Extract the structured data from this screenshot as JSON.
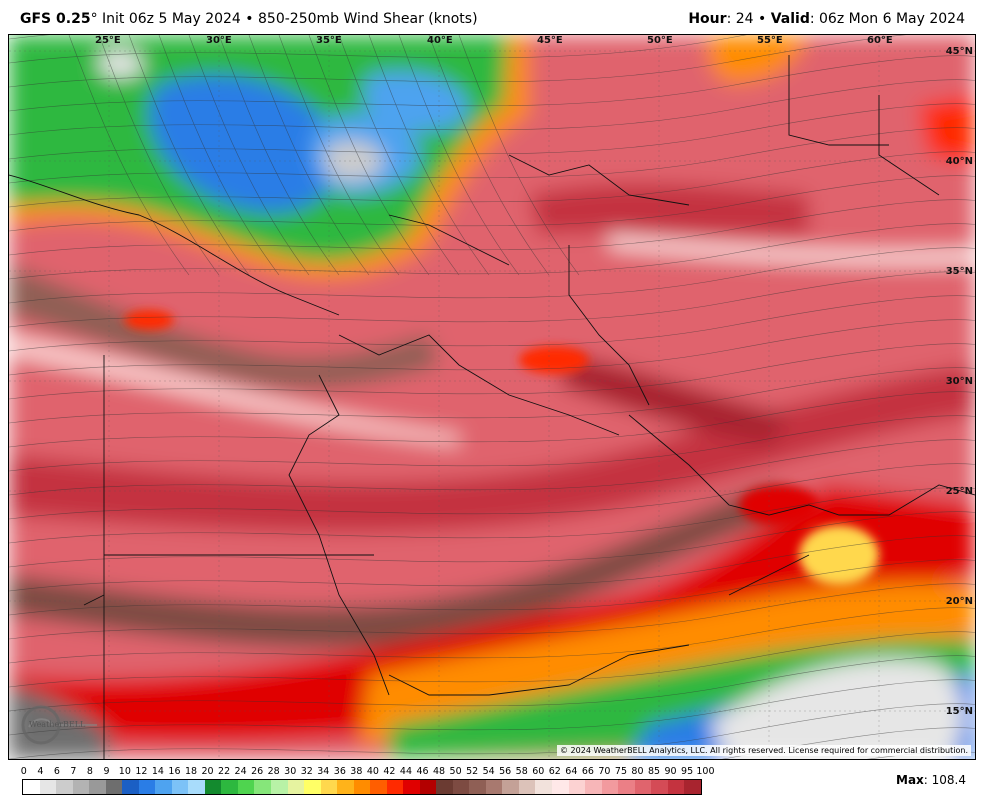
{
  "header": {
    "model": "GFS 0.25",
    "model_deg": "°",
    "init": "Init 06z 5 May 2024",
    "sep": "•",
    "product": "850-250mb Wind Shear (knots)",
    "hour_label": "Hour",
    "hour_value": ": 24",
    "valid_label": "Valid",
    "valid_value": ": 06z Mon 6 May 2024"
  },
  "map": {
    "lon_labels": [
      "25°E",
      "30°E",
      "35°E",
      "40°E",
      "45°E",
      "50°E",
      "55°E",
      "60°E"
    ],
    "lat_labels": [
      "45°N",
      "40°N",
      "35°N",
      "30°N",
      "25°N",
      "20°N",
      "15°N"
    ],
    "copyright": "© 2024 WeatherBELL Analytics, LLC. All rights reserved. License required for commercial distribution.",
    "logo_text": "WeatherBELL"
  },
  "colorbar": {
    "labels": [
      "0",
      "4",
      "6",
      "7",
      "8",
      "9",
      "10",
      "12",
      "14",
      "16",
      "18",
      "20",
      "22",
      "24",
      "26",
      "28",
      "30",
      "32",
      "34",
      "36",
      "38",
      "40",
      "42",
      "44",
      "46",
      "48",
      "50",
      "52",
      "54",
      "56",
      "58",
      "60",
      "62",
      "64",
      "66",
      "70",
      "75",
      "80",
      "85",
      "90",
      "95",
      "100"
    ],
    "colors": [
      "#ffffff",
      "#e6e6e6",
      "#cccccc",
      "#b3b3b3",
      "#999999",
      "#6e6e6e",
      "#1b5fc4",
      "#2a7de6",
      "#4ea3f0",
      "#7cc2f7",
      "#a8dcfb",
      "#138a2e",
      "#2db83f",
      "#4fd44f",
      "#86e67a",
      "#b8f2a6",
      "#e6f3a0",
      "#ffff66",
      "#ffd84d",
      "#ffb31a",
      "#ff8c00",
      "#ff5e00",
      "#ff2a00",
      "#e00000",
      "#b30000",
      "#6b3b32",
      "#7d4b42",
      "#8f5f55",
      "#a8796f",
      "#c4a197",
      "#dcc2b9",
      "#f2e2dc",
      "#ffe8e8",
      "#fcd2d2",
      "#f7b6b8",
      "#f29a9e",
      "#eb7f86",
      "#e0646d",
      "#d44b56",
      "#c4333f",
      "#a8242f"
    ]
  },
  "max": {
    "label": "Max",
    "value": ": 108.4"
  }
}
